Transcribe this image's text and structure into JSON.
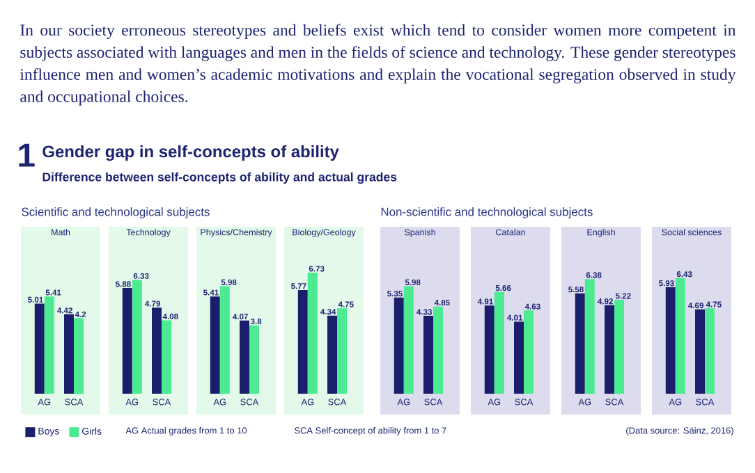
{
  "chart_data": [
    {
      "type": "other",
      "title": "Gender gap in self-concepts of ability",
      "subtitle": "Difference between self-concepts of ability and actual grades",
      "annotations": [
        "In our society erroneous stereotypes and beliefs exist which tend to consider women more competent in subjects associated with languages and men in the fields of science and technology. These gender stereotypes influence men and women’s academic motivations and explain the vocational segregation observed in study and occupational choices.",
        "1",
        "Scientific and technological subjects",
        "Non-scientific and technological subjects",
        "AG Actual grades from 1 to 10",
        "SCA Self-concept of ability from 1 to 7",
        "(Data source: Sáinz, 2016)"
      ]
    },
    {
      "type": "bar",
      "title": "Math",
      "categories": [
        "AG",
        "SCA"
      ],
      "data_labels": true,
      "legend": "bottom",
      "series": [
        {
          "name": "Boys",
          "color": "#1b1f6b",
          "values": [
            5.01,
            4.42
          ]
        },
        {
          "name": "Girls",
          "color": "#4ceb91",
          "values": [
            5.41,
            4.2
          ]
        }
      ]
    },
    {
      "type": "bar",
      "title": "Technology",
      "categories": [
        "AG",
        "SCA"
      ],
      "data_labels": true,
      "series": [
        {
          "color": "#1b1f6b",
          "values": [
            5.88,
            4.79
          ]
        },
        {
          "color": "#4ceb91",
          "values": [
            6.33,
            4.08
          ]
        }
      ]
    },
    {
      "type": "bar",
      "title": "Physics/Chemistry",
      "categories": [
        "AG",
        "SCA"
      ],
      "data_labels": true,
      "series": [
        {
          "color": "#1b1f6b",
          "values": [
            5.41,
            4.07
          ]
        },
        {
          "color": "#4ceb91",
          "values": [
            5.98,
            3.8
          ]
        }
      ]
    },
    {
      "type": "bar",
      "title": "Biology/Geology",
      "categories": [
        "AG",
        "SCA"
      ],
      "data_labels": true,
      "series": [
        {
          "color": "#1b1f6b",
          "values": [
            5.77,
            4.34
          ]
        },
        {
          "color": "#4ceb91",
          "values": [
            6.73,
            4.75
          ]
        }
      ]
    },
    {
      "type": "bar",
      "title": "Spanish",
      "categories": [
        "AG",
        "SCA"
      ],
      "data_labels": true,
      "series": [
        {
          "color": "#1b1f6b",
          "values": [
            5.35,
            4.33
          ]
        },
        {
          "color": "#4ceb91",
          "values": [
            5.98,
            4.85
          ]
        }
      ]
    },
    {
      "type": "bar",
      "title": "Catalan",
      "categories": [
        "AG",
        "SCA"
      ],
      "data_labels": true,
      "series": [
        {
          "color": "#1b1f6b",
          "values": [
            4.91,
            4.01
          ]
        },
        {
          "color": "#4ceb91",
          "values": [
            5.66,
            4.63
          ]
        }
      ]
    },
    {
      "type": "bar",
      "title": "English",
      "categories": [
        "AG",
        "SCA"
      ],
      "data_labels": true,
      "series": [
        {
          "color": "#1b1f6b",
          "values": [
            5.58,
            4.92
          ]
        },
        {
          "color": "#4ceb91",
          "values": [
            6.38,
            5.22
          ]
        }
      ]
    },
    {
      "type": "bar",
      "title": "Social sciences",
      "categories": [
        "AG",
        "SCA"
      ],
      "data_labels": true,
      "series": [
        {
          "color": "#1b1f6b",
          "values": [
            5.93,
            4.69
          ]
        },
        {
          "color": "#4ceb91",
          "values": [
            6.43,
            4.75
          ]
        }
      ]
    }
  ]
}
